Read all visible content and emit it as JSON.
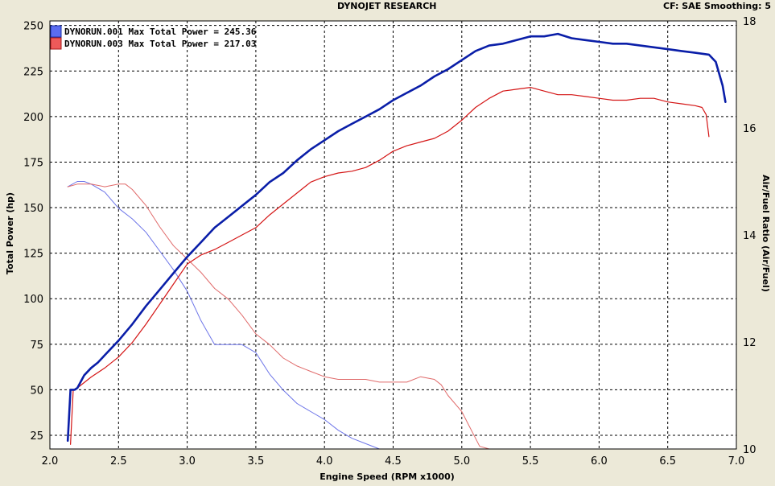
{
  "header": {
    "title": "DYNOJET RESEARCH",
    "right": "CF: SAE  Smoothing: 5"
  },
  "colors": {
    "background": "#ece9d8",
    "plot_bg": "#ffffff",
    "series1": "#0a1ea8",
    "series2": "#d41515",
    "afr1": "#6d75e8",
    "afr2": "#e06a6a"
  },
  "chart_data": {
    "type": "line",
    "title": "DYNOJET RESEARCH",
    "xlabel": "Engine Speed (RPM x1000)",
    "ylabel": "Total Power (hp)",
    "y2label": "Air/Fuel Ratio (Air/Fuel)",
    "xlim": [
      2.0,
      7.0
    ],
    "ylim": [
      17.5,
      252.5
    ],
    "y2lim": [
      10,
      18
    ],
    "xticks": [
      "2.0",
      "2.5",
      "3.0",
      "3.5",
      "4.0",
      "4.5",
      "5.0",
      "5.5",
      "6.0",
      "6.5",
      "7.0"
    ],
    "yticks": [
      "25",
      "50",
      "75",
      "100",
      "125",
      "150",
      "175",
      "200",
      "225",
      "250"
    ],
    "y2ticks": [
      "10",
      "12",
      "14",
      "16",
      "18"
    ],
    "grid": true,
    "legend": [
      "DYNORUN.001 Max Total Power = 245.36",
      "DYNORUN.003 Max Total Power = 217.03"
    ],
    "series": [
      {
        "name": "DYNORUN.001",
        "axis": "left",
        "x": [
          2.13,
          2.15,
          2.18,
          2.2,
          2.25,
          2.3,
          2.35,
          2.4,
          2.5,
          2.6,
          2.7,
          2.8,
          2.9,
          3.0,
          3.1,
          3.2,
          3.3,
          3.4,
          3.5,
          3.6,
          3.7,
          3.8,
          3.9,
          4.0,
          4.1,
          4.2,
          4.3,
          4.4,
          4.5,
          4.6,
          4.7,
          4.8,
          4.9,
          5.0,
          5.1,
          5.2,
          5.3,
          5.4,
          5.5,
          5.6,
          5.7,
          5.8,
          5.9,
          6.0,
          6.1,
          6.2,
          6.3,
          6.4,
          6.5,
          6.6,
          6.7,
          6.8,
          6.85,
          6.9,
          6.92
        ],
        "y": [
          22,
          50,
          50,
          51,
          58,
          62,
          65,
          69,
          77,
          86,
          96,
          105,
          114,
          123,
          131,
          139,
          145,
          151,
          157,
          164,
          169,
          176,
          182,
          187,
          192,
          196,
          200,
          204,
          209,
          213,
          217,
          222,
          226,
          231,
          236,
          239,
          240,
          242,
          244,
          244,
          245.4,
          243,
          242,
          241,
          240,
          240,
          239,
          238,
          237,
          236,
          235,
          234,
          230,
          217,
          208
        ]
      },
      {
        "name": "DYNORUN.003",
        "axis": "left",
        "x": [
          2.15,
          2.17,
          2.2,
          2.25,
          2.3,
          2.4,
          2.5,
          2.6,
          2.7,
          2.8,
          2.9,
          3.0,
          3.1,
          3.2,
          3.3,
          3.4,
          3.5,
          3.6,
          3.7,
          3.8,
          3.9,
          4.0,
          4.1,
          4.2,
          4.3,
          4.4,
          4.5,
          4.6,
          4.7,
          4.8,
          4.9,
          5.0,
          5.1,
          5.2,
          5.3,
          5.4,
          5.5,
          5.6,
          5.7,
          5.8,
          5.9,
          6.0,
          6.1,
          6.2,
          6.3,
          6.4,
          6.5,
          6.6,
          6.7,
          6.75,
          6.78,
          6.8
        ],
        "y": [
          20,
          50,
          51,
          54,
          57,
          62,
          68,
          76,
          86,
          97,
          108,
          119,
          124,
          127,
          131,
          135,
          139,
          146,
          152,
          158,
          164,
          167,
          169,
          170,
          172,
          176,
          181,
          184,
          186,
          188,
          192,
          198,
          205,
          210,
          214,
          215,
          216,
          214,
          212,
          212,
          211,
          210,
          209,
          209,
          210,
          210,
          208,
          207,
          206,
          205,
          201,
          189
        ]
      },
      {
        "name": "DYNORUN.001 Air/Fuel",
        "axis": "right",
        "x": [
          2.13,
          2.2,
          2.25,
          2.3,
          2.4,
          2.5,
          2.6,
          2.7,
          2.8,
          2.9,
          3.0,
          3.1,
          3.2,
          3.3,
          3.4,
          3.5,
          3.6,
          3.7,
          3.8,
          3.9,
          4.0,
          4.1,
          4.2,
          4.3,
          4.4,
          4.5,
          4.6,
          5.0,
          5.5,
          6.0,
          6.5,
          6.9
        ],
        "y": [
          14.9,
          15.0,
          15.0,
          14.95,
          14.8,
          14.5,
          14.3,
          14.05,
          13.7,
          13.35,
          12.95,
          12.4,
          11.95,
          11.95,
          11.95,
          11.8,
          11.4,
          11.1,
          10.85,
          10.7,
          10.55,
          10.35,
          10.2,
          10.1,
          10.0,
          10.0,
          10.0,
          10.0,
          10.0,
          10.0,
          10.0,
          10.0
        ]
      },
      {
        "name": "DYNORUN.003 Air/Fuel",
        "axis": "right",
        "x": [
          2.13,
          2.2,
          2.3,
          2.4,
          2.5,
          2.55,
          2.6,
          2.7,
          2.8,
          2.9,
          3.0,
          3.1,
          3.2,
          3.3,
          3.4,
          3.5,
          3.6,
          3.7,
          3.8,
          3.9,
          4.0,
          4.1,
          4.2,
          4.3,
          4.4,
          4.5,
          4.6,
          4.7,
          4.8,
          4.85,
          4.9,
          5.0,
          5.05,
          5.1,
          5.13,
          5.2,
          5.5,
          6.0,
          6.5,
          6.8
        ],
        "y": [
          14.9,
          14.95,
          14.95,
          14.9,
          14.95,
          14.95,
          14.85,
          14.55,
          14.15,
          13.8,
          13.55,
          13.3,
          13.0,
          12.8,
          12.5,
          12.15,
          11.95,
          11.7,
          11.55,
          11.45,
          11.35,
          11.3,
          11.3,
          11.3,
          11.25,
          11.25,
          11.25,
          11.35,
          11.3,
          11.2,
          11.0,
          10.7,
          10.45,
          10.2,
          10.05,
          10.0,
          10.0,
          10.0,
          10.0,
          10.0
        ]
      }
    ]
  }
}
